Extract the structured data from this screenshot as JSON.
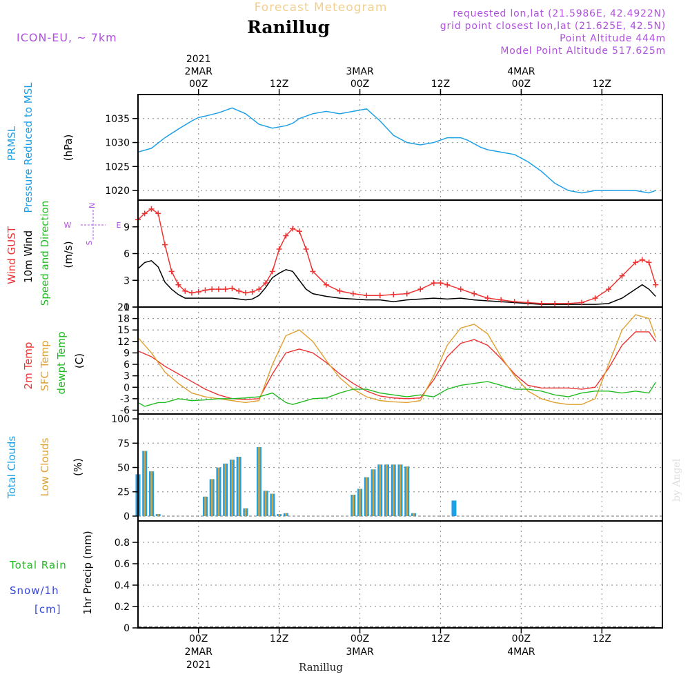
{
  "header": {
    "title": "Ranillug",
    "faded_title": "Forecast Meteogram",
    "model": "ICON-EU, ~ 7km",
    "info": [
      "requested lon,lat (21.5986E, 42.4922N)",
      "grid point closest lon,lat (21.625E, 42.5N)",
      "Point Altitude 444m",
      "Model Point Altitude 517.625m"
    ],
    "footer_title": "Ranillug",
    "watermark": "by Angel"
  },
  "time_axis": {
    "top_labels": [
      {
        "lines": [
          "2021",
          "2MAR",
          "00Z"
        ],
        "hour": 24
      },
      {
        "lines": [
          "12Z"
        ],
        "hour": 36
      },
      {
        "lines": [
          "3MAR",
          "00Z"
        ],
        "hour": 48
      },
      {
        "lines": [
          "12Z"
        ],
        "hour": 60
      },
      {
        "lines": [
          "4MAR",
          "00Z"
        ],
        "hour": 72
      },
      {
        "lines": [
          "12Z"
        ],
        "hour": 84
      }
    ],
    "bottom_labels": [
      {
        "lines": [
          "00Z",
          "2MAR",
          "2021"
        ],
        "hour": 24
      },
      {
        "lines": [
          "12Z"
        ],
        "hour": 36
      },
      {
        "lines": [
          "00Z",
          "3MAR"
        ],
        "hour": 48
      },
      {
        "lines": [
          "12Z"
        ],
        "hour": 60
      },
      {
        "lines": [
          "00Z",
          "4MAR"
        ],
        "hour": 72
      },
      {
        "lines": [
          "12Z"
        ],
        "hour": 84
      }
    ]
  },
  "panel_labels": {
    "pressure": [
      {
        "text": "PRMSL",
        "color": "#1ea0e6"
      },
      {
        "text": "Pressure Reduced to MSL",
        "color": "#1ea0e6"
      },
      {
        "text": "(hPa)",
        "color": "#000000"
      }
    ],
    "wind": [
      {
        "text": "Wind GUST",
        "color": "#ee3333"
      },
      {
        "text": "10m Wind",
        "color": "#000000"
      },
      {
        "text": "Speed and Direction",
        "color": "#22bb22"
      },
      {
        "text": "(m/s)",
        "color": "#000000"
      }
    ],
    "temp": [
      {
        "text": "2m Temp",
        "color": "#ee3333"
      },
      {
        "text": "SFC Temp",
        "color": "#e0a030"
      },
      {
        "text": "dewpt Temp",
        "color": "#22bb22"
      },
      {
        "text": "(C)",
        "color": "#000000"
      }
    ],
    "clouds": [
      {
        "text": "Total Clouds",
        "color": "#1ea0e6"
      },
      {
        "text": "Low Clouds",
        "color": "#e0a030"
      },
      {
        "text": "(%)",
        "color": "#000000"
      }
    ],
    "precip": [
      {
        "text": "Total  Rain",
        "color": "#22bb22"
      },
      {
        "text": "Snow/1h",
        "color": "#3344dd"
      },
      {
        "text": "[cm]",
        "color": "#3344dd"
      },
      {
        "text": "1hr Precip (mm)",
        "color": "#000000"
      }
    ],
    "compass": {
      "n": "N",
      "s": "S",
      "w": "W",
      "e": "E",
      "color": "#b050e0"
    }
  },
  "colors": {
    "pressure": "#1ea0e6",
    "gust": "#ee3333",
    "wind": "#000000",
    "temp2m": "#ee3333",
    "sfc": "#e0a030",
    "dewpt": "#22bb22",
    "total_cloud": "#1ea0e6",
    "low_cloud": "#e0a030",
    "info_text": "#b050e0",
    "faded_title": "#f0d090"
  },
  "chart_data": [
    {
      "type": "line",
      "panel": "pressure",
      "x_unit": "hours from 1 MAR 00Z",
      "xlim": [
        15,
        93
      ],
      "ylim": [
        1018,
        1040
      ],
      "yticks": [
        1020,
        1025,
        1030,
        1035
      ],
      "grid": true,
      "series": [
        {
          "x": [
            15,
            17,
            19,
            21,
            23,
            24,
            25,
            27,
            29,
            31,
            33,
            35,
            37,
            38,
            39,
            40,
            41,
            43,
            45,
            47,
            49,
            51,
            53,
            55,
            57,
            59,
            61,
            63,
            64,
            66,
            67,
            69,
            71,
            73,
            75,
            77,
            79,
            81,
            83,
            85,
            87,
            89,
            91,
            92
          ],
          "y": [
            1028,
            1028.8,
            1031,
            1032.8,
            1034.5,
            1035.2,
            1035.5,
            1036.2,
            1037.2,
            1036,
            1033.8,
            1033,
            1033.5,
            1034,
            1035,
            1035.5,
            1036,
            1036.5,
            1036,
            1036.5,
            1037,
            1034.5,
            1031.5,
            1030,
            1029.5,
            1030,
            1031,
            1031,
            1030.5,
            1029,
            1028.5,
            1028,
            1027.5,
            1026,
            1024,
            1021.5,
            1020,
            1019.5,
            1020,
            1020,
            1020,
            1020,
            1019.5,
            1020
          ]
        }
      ]
    },
    {
      "type": "line",
      "panel": "wind",
      "x_unit": "hours from 1 MAR 00Z",
      "xlim": [
        15,
        93
      ],
      "ylim": [
        0,
        12
      ],
      "yticks": [
        0,
        3,
        6,
        9
      ],
      "grid": true,
      "series": [
        {
          "name": "Wind GUST",
          "x": [
            15,
            16,
            17,
            18,
            19,
            20,
            21,
            22,
            23,
            24,
            25,
            26,
            27,
            28,
            29,
            30,
            31,
            32,
            33,
            34,
            35,
            36,
            37,
            38,
            39,
            40,
            41,
            43,
            45,
            47,
            49,
            51,
            53,
            55,
            57,
            59,
            60,
            61,
            63,
            65,
            67,
            69,
            71,
            73,
            75,
            77,
            79,
            81,
            83,
            85,
            87,
            89,
            90,
            91,
            92
          ],
          "y": [
            9.8,
            10.5,
            11,
            10.5,
            7,
            4,
            2.5,
            1.8,
            1.6,
            1.7,
            1.9,
            2,
            2,
            2,
            2.1,
            1.8,
            1.6,
            1.7,
            2,
            2.7,
            4,
            6.5,
            8,
            8.8,
            8.5,
            6.5,
            4,
            2.5,
            1.8,
            1.5,
            1.3,
            1.3,
            1.4,
            1.5,
            2,
            2.7,
            2.7,
            2.5,
            2,
            1.5,
            1,
            0.8,
            0.6,
            0.5,
            0.4,
            0.4,
            0.4,
            0.5,
            1,
            2,
            3.5,
            5,
            5.3,
            5,
            2.5
          ]
        },
        {
          "name": "10m Wind",
          "x": [
            15,
            16,
            17,
            18,
            19,
            20,
            21,
            22,
            23,
            24,
            25,
            26,
            27,
            28,
            29,
            30,
            31,
            32,
            33,
            34,
            35,
            36,
            37,
            38,
            39,
            40,
            41,
            43,
            45,
            47,
            49,
            51,
            53,
            55,
            57,
            59,
            61,
            63,
            65,
            67,
            69,
            71,
            73,
            75,
            77,
            79,
            81,
            83,
            85,
            87,
            89,
            90,
            91,
            92
          ],
          "y": [
            4.3,
            5,
            5.2,
            4.5,
            2.8,
            2,
            1.4,
            1,
            1,
            1,
            1,
            1,
            1,
            1,
            1,
            0.9,
            0.8,
            0.9,
            1.3,
            2.2,
            3.3,
            3.8,
            4.2,
            4,
            3,
            2,
            1.5,
            1.2,
            1,
            0.9,
            0.8,
            0.8,
            0.6,
            0.8,
            0.9,
            1,
            0.9,
            1,
            0.8,
            0.7,
            0.6,
            0.5,
            0.4,
            0.3,
            0.3,
            0.3,
            0.3,
            0.3,
            0.4,
            1,
            2,
            2.5,
            2,
            1.2
          ]
        }
      ]
    },
    {
      "type": "line",
      "panel": "temperature",
      "x_unit": "hours from 1 MAR 00Z",
      "xlim": [
        15,
        93
      ],
      "ylim": [
        -7,
        21
      ],
      "yticks": [
        -6,
        -3,
        0,
        3,
        6,
        9,
        12,
        15,
        18,
        21
      ],
      "grid": true,
      "series": [
        {
          "name": "2m Temp",
          "x": [
            15,
            17,
            19,
            21,
            23,
            25,
            27,
            29,
            31,
            33,
            35,
            37,
            39,
            41,
            43,
            45,
            47,
            49,
            51,
            53,
            55,
            57,
            59,
            61,
            63,
            65,
            67,
            69,
            71,
            73,
            75,
            77,
            79,
            81,
            83,
            85,
            87,
            89,
            91,
            92
          ],
          "y": [
            9.5,
            8,
            5.5,
            3.5,
            1.5,
            -0.5,
            -2,
            -3,
            -3.2,
            -3,
            3.5,
            9,
            10,
            9,
            6.5,
            3.5,
            1,
            -1,
            -2.3,
            -2.8,
            -3,
            -2.8,
            2,
            8,
            11.5,
            12.5,
            11,
            7.5,
            3.5,
            0.5,
            -0.2,
            -0.2,
            -0.2,
            -0.5,
            0,
            5,
            11,
            14.5,
            14.5,
            12
          ]
        },
        {
          "name": "SFC Temp",
          "x": [
            15,
            17,
            19,
            21,
            23,
            25,
            27,
            29,
            31,
            33,
            35,
            37,
            39,
            41,
            43,
            45,
            47,
            49,
            51,
            53,
            55,
            57,
            59,
            61,
            63,
            65,
            67,
            69,
            71,
            73,
            75,
            77,
            79,
            81,
            83,
            85,
            87,
            89,
            91,
            92
          ],
          "y": [
            13,
            9,
            4,
            1,
            -1.5,
            -2.5,
            -3,
            -3.5,
            -4,
            -3.5,
            6,
            13.5,
            15,
            12,
            7,
            2.5,
            -0.5,
            -2.5,
            -3.5,
            -3.8,
            -4,
            -3.5,
            3,
            11,
            15.5,
            16.5,
            14,
            8,
            3,
            -1,
            -3,
            -4,
            -4.5,
            -4.5,
            -3,
            6,
            15,
            19,
            18,
            13
          ]
        },
        {
          "name": "dewpt Temp",
          "x": [
            15,
            16,
            17,
            18,
            19,
            21,
            23,
            25,
            27,
            29,
            31,
            33,
            35,
            37,
            38,
            39,
            41,
            43,
            45,
            47,
            49,
            51,
            53,
            55,
            57,
            59,
            61,
            63,
            65,
            67,
            69,
            71,
            73,
            75,
            77,
            79,
            81,
            83,
            85,
            87,
            89,
            91,
            92
          ],
          "y": [
            -4,
            -5,
            -4.5,
            -4,
            -4,
            -3,
            -3.5,
            -3.3,
            -3,
            -3,
            -2.8,
            -2.5,
            -1.5,
            -4,
            -4.5,
            -4,
            -3,
            -2.8,
            -1.5,
            -0.5,
            -0.5,
            -1.5,
            -2,
            -2.5,
            -2,
            -2.5,
            -0.5,
            0.5,
            1,
            1.5,
            0.5,
            -0.5,
            -0.5,
            -1,
            -2,
            -2.5,
            -1.5,
            -1,
            -1,
            -1.5,
            -1,
            -1.5,
            1.3
          ]
        }
      ]
    },
    {
      "type": "bar",
      "panel": "clouds",
      "x_unit": "hours from 1 MAR 00Z",
      "xlim": [
        15,
        93
      ],
      "ylim": [
        -5,
        105
      ],
      "yticks": [
        0,
        25,
        50,
        75,
        100
      ],
      "grid": true,
      "x": [
        15,
        16,
        17,
        18,
        19,
        20,
        21,
        22,
        23,
        24,
        25,
        26,
        27,
        28,
        29,
        30,
        31,
        32,
        33,
        34,
        35,
        36,
        37,
        38,
        39,
        40,
        41,
        42,
        43,
        44,
        45,
        46,
        47,
        48,
        49,
        50,
        51,
        52,
        53,
        54,
        55,
        56,
        57,
        58,
        59,
        60,
        61,
        62,
        63,
        64,
        65,
        66,
        67,
        68,
        69,
        70,
        71,
        72,
        73,
        74,
        75,
        76,
        77,
        78,
        79,
        80,
        81,
        82,
        83,
        84,
        85,
        86,
        87,
        88,
        89,
        90,
        91,
        92
      ],
      "series": [
        {
          "name": "Total Clouds",
          "values": [
            43,
            67,
            46,
            2,
            0,
            0,
            0,
            0,
            0,
            0,
            20,
            38,
            50,
            54,
            58,
            61,
            8,
            0,
            71,
            26,
            23,
            2,
            3,
            0,
            0,
            0,
            0,
            0,
            0,
            0,
            0,
            0,
            22,
            28,
            40,
            48,
            53,
            53,
            53,
            53,
            51,
            3,
            0,
            0,
            0,
            0,
            0,
            16,
            0,
            0,
            0,
            0,
            0,
            0,
            0,
            0,
            0,
            0,
            0,
            0,
            0,
            0,
            0,
            0,
            0,
            0,
            0,
            0,
            0,
            0,
            0,
            0,
            0,
            0,
            0,
            0,
            0,
            0
          ]
        },
        {
          "name": "Low Clouds",
          "values": [
            43,
            67,
            46,
            2,
            0,
            0,
            0,
            0,
            0,
            0,
            20,
            38,
            50,
            54,
            58,
            61,
            8,
            0,
            71,
            26,
            23,
            2,
            3,
            0,
            0,
            0,
            0,
            0,
            0,
            0,
            0,
            0,
            22,
            28,
            40,
            48,
            53,
            53,
            53,
            53,
            51,
            3,
            0,
            0,
            0,
            0,
            0,
            0,
            0,
            0,
            0,
            0,
            0,
            0,
            0,
            0,
            0,
            0,
            0,
            0,
            0,
            0,
            0,
            0,
            0,
            0,
            0,
            0,
            0,
            0,
            0,
            0,
            0,
            0,
            0,
            0,
            0,
            0
          ]
        }
      ]
    },
    {
      "type": "line",
      "panel": "precip",
      "x_unit": "hours from 1 MAR 00Z",
      "xlim": [
        15,
        93
      ],
      "ylim": [
        0,
        1.0
      ],
      "yticks": [
        0,
        0.2,
        0.4,
        0.6,
        0.8
      ],
      "grid": true,
      "series": [
        {
          "name": "Total Rain",
          "x": [
            15,
            92
          ],
          "y": [
            0,
            0
          ]
        }
      ]
    }
  ]
}
